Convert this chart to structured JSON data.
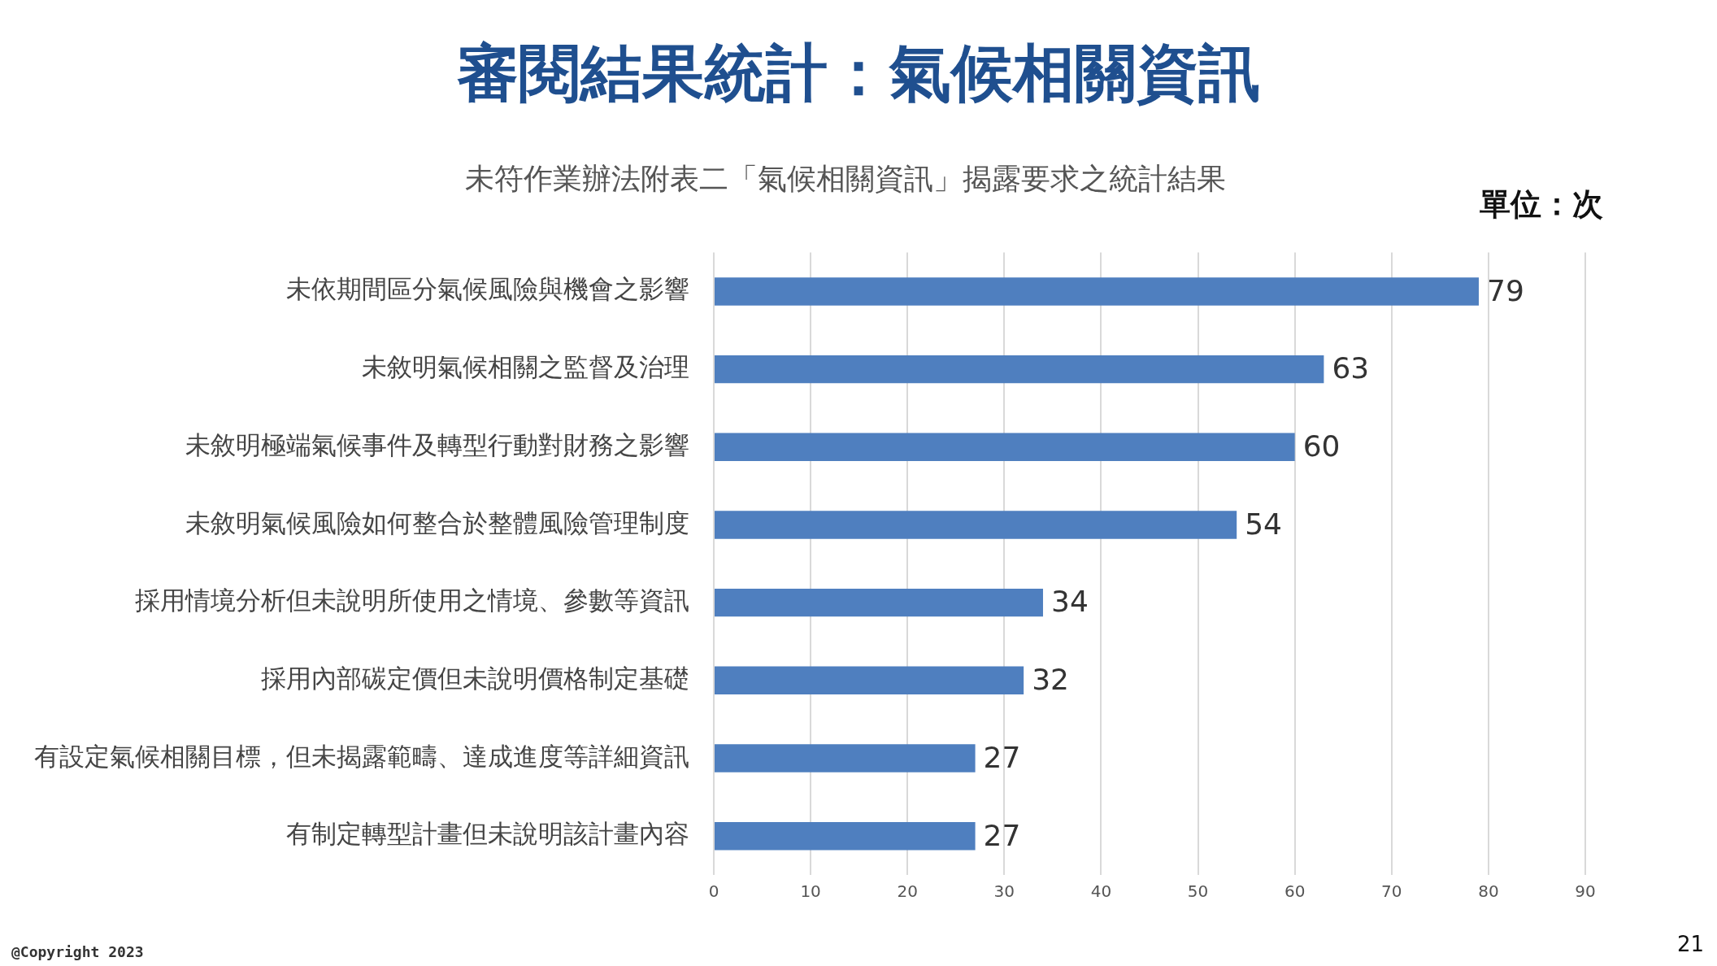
{
  "chart_data": {
    "type": "bar",
    "orientation": "horizontal",
    "title": "審閱結果統計：氣候相關資訊",
    "subtitle": "未符作業辦法附表二「氣候相關資訊」揭露要求之統計結果",
    "categories": [
      "未依期間區分氣候風險與機會之影響",
      "未敘明氣候相關之監督及治理",
      "未敘明極端氣候事件及轉型行動對財務之影響",
      "未敘明氣候風險如何整合於整體風險管理制度",
      "採用情境分析但未說明所使用之情境、參數等資訊",
      "採用內部碳定價但未說明價格制定基礎",
      "有設定氣候相關目標，但未揭露範疇、達成進度等詳細資訊",
      "有制定轉型計畫但未說明該計畫內容"
    ],
    "values": [
      79,
      63,
      60,
      54,
      34,
      32,
      27,
      27
    ],
    "color": "#4f7fbf",
    "xlim": [
      0,
      90
    ],
    "xticks": [
      0,
      10,
      20,
      30,
      40,
      50,
      60,
      70,
      80,
      90
    ],
    "grid": "x",
    "data_labels": true,
    "annotations": [
      "單位：次",
      "@Copyright 2023",
      "21"
    ]
  }
}
